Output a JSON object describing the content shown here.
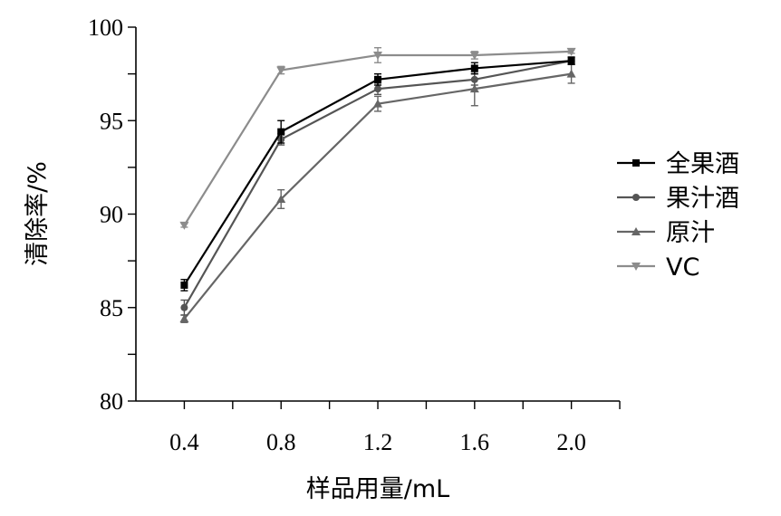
{
  "chart_data": {
    "type": "line",
    "xlabel": "样品用量/mL",
    "ylabel": "清除率/%",
    "x": [
      0.4,
      0.8,
      1.2,
      1.6,
      2.0
    ],
    "x_tick_labels": [
      "0.4",
      "0.8",
      "1.2",
      "1.6",
      "2.0"
    ],
    "xlim": [
      0.2,
      2.2
    ],
    "ylim": [
      80,
      100
    ],
    "y_ticks": [
      80,
      85,
      90,
      95,
      100
    ],
    "y_tick_labels": [
      "80",
      "85",
      "90",
      "95",
      "100"
    ],
    "grid": false,
    "legend_position": "right",
    "series": [
      {
        "name": "全果酒",
        "marker": "square",
        "color": "#000000",
        "values": [
          86.2,
          94.4,
          97.2,
          97.8,
          98.2
        ],
        "errors": [
          0.3,
          0.6,
          0.3,
          0.3,
          0.2
        ]
      },
      {
        "name": "果汁酒",
        "marker": "circle",
        "color": "#555555",
        "values": [
          85.0,
          94.0,
          96.7,
          97.2,
          98.2
        ],
        "errors": [
          0.4,
          0.3,
          0.3,
          0.3,
          0.2
        ]
      },
      {
        "name": "原汁",
        "marker": "triangle-up",
        "color": "#666666",
        "values": [
          84.4,
          90.8,
          95.9,
          96.7,
          97.5
        ],
        "errors": [
          0.2,
          0.5,
          0.4,
          0.9,
          0.5
        ]
      },
      {
        "name": "VC",
        "marker": "triangle-down",
        "color": "#8c8c8c",
        "values": [
          89.4,
          97.7,
          98.5,
          98.5,
          98.7
        ],
        "errors": [
          0.1,
          0.2,
          0.4,
          0.2,
          0.1
        ]
      }
    ]
  }
}
